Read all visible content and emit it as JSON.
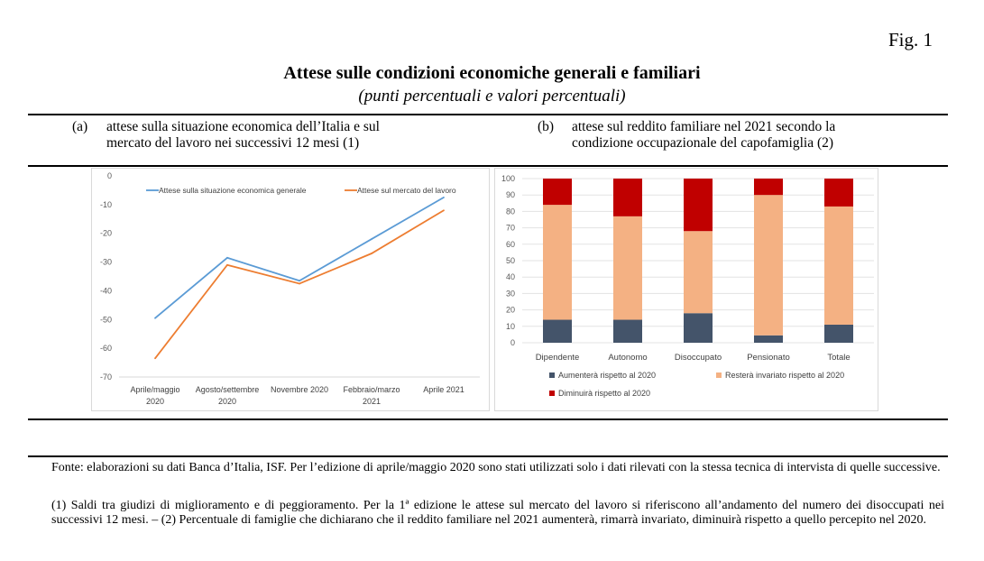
{
  "figure_label": "Fig. 1",
  "title": "Attese sulle condizioni economiche generali e familiari",
  "subtitle": "(punti percentuali e valori percentuali)",
  "panels": {
    "a": {
      "tag": "(a)",
      "line1": "attese sulla situazione economica dell’Italia e sul",
      "line2": "mercato del lavoro nei successivi 12 mesi (1)"
    },
    "b": {
      "tag": "(b)",
      "line1": "attese sul reddito familiare nel 2021 secondo la",
      "line2": "condizione occupazionale del capofamiglia  (2)"
    }
  },
  "chart_data": [
    {
      "type": "line",
      "categories": [
        [
          "Aprile/maggio",
          "2020"
        ],
        [
          "Agosto/settembre",
          "2020"
        ],
        [
          "Novembre 2020"
        ],
        [
          "Febbraio/marzo",
          "2021"
        ],
        [
          "Aprile 2021"
        ]
      ],
      "ylim": [
        -70,
        0
      ],
      "yticks": [
        0,
        -10,
        -20,
        -30,
        -40,
        -50,
        -60,
        -70
      ],
      "grid": false,
      "legend": "top",
      "series": [
        {
          "name": "Attese sulla situazione economica generale",
          "color": "#5b9bd5",
          "values": [
            -49.5,
            -28.5,
            -36.5,
            -22,
            -7.5
          ]
        },
        {
          "name": "Attese sul mercato del lavoro",
          "color": "#ed7d31",
          "values": [
            -63.5,
            -31,
            -37.5,
            -27,
            -12
          ]
        }
      ]
    },
    {
      "type": "bar",
      "stacked": true,
      "categories": [
        "Dipendente",
        "Autonomo",
        "Disoccupato",
        "Pensionato",
        "Totale"
      ],
      "ylim": [
        0,
        100
      ],
      "yticks": [
        0,
        10,
        20,
        30,
        40,
        50,
        60,
        70,
        80,
        90,
        100
      ],
      "grid": true,
      "legend": "bottom",
      "series": [
        {
          "name": "Aumenterà rispetto al 2020",
          "color": "#44546a",
          "values": [
            14,
            14,
            18,
            4.5,
            11
          ]
        },
        {
          "name": "Resterà invariato rispetto al 2020",
          "color": "#f4b183",
          "values": [
            70,
            63,
            50,
            85.5,
            72
          ]
        },
        {
          "name": "Diminuirà rispetto al 2020",
          "color": "#c00000",
          "values": [
            16,
            23,
            32,
            10,
            17
          ]
        }
      ]
    }
  ],
  "notes": {
    "fonte": "Fonte: elaborazioni su dati Banca d’Italia, ISF. Per l’edizione di aprile/maggio 2020 sono stati utilizzati solo i dati rilevati con la stessa tecnica di intervista di quelle successive.",
    "note1": "(1) Saldi tra giudizi di miglioramento e di peggioramento. Per la 1ª edizione le attese sul mercato del lavoro si riferiscono all’andamento del numero dei disoccupati nei successivi 12 mesi. – (2) Percentuale di famiglie che dichiarano che il reddito familiare nel 2021 aumenterà, rimarrà invariato, diminuirà rispetto a quello percepito nel 2020."
  }
}
